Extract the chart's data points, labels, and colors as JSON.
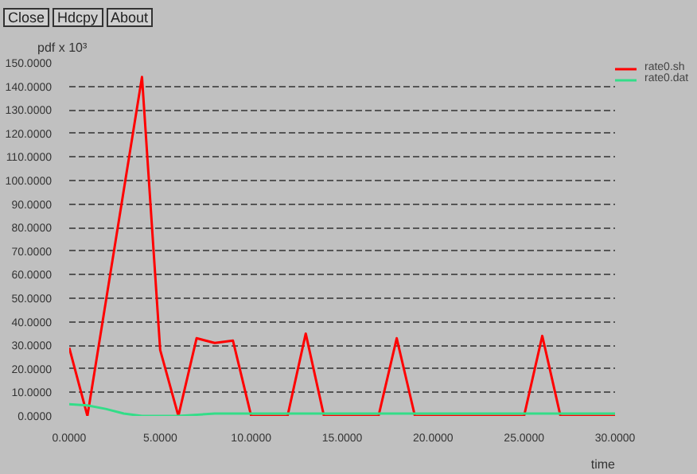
{
  "chart_data": {
    "type": "line",
    "ylabel": "pdf x 10³",
    "xlabel": "time",
    "annotations": [
      "Close",
      "Hdcpy",
      "About"
    ],
    "series": [
      {
        "name": "rate0.sh",
        "color": "#ff0000",
        "x": [
          0,
          1,
          4,
          5,
          6,
          7,
          8,
          9,
          10,
          12,
          13,
          14,
          17,
          18,
          19,
          25,
          26,
          27,
          30
        ],
        "values": [
          29,
          0,
          144,
          28,
          0,
          33,
          31,
          32,
          0,
          0,
          35,
          0,
          0,
          33,
          0,
          0,
          34,
          0,
          0
        ]
      },
      {
        "name": "rate0.dat",
        "color": "#33dd88",
        "x": [
          0,
          1,
          2,
          3,
          4,
          6,
          8,
          10,
          30
        ],
        "values": [
          5,
          4.5,
          3,
          1,
          0,
          0,
          1,
          1,
          1
        ]
      }
    ],
    "xlim": [
      0,
      30
    ],
    "ylim": [
      0,
      150
    ],
    "xticks": [
      {
        "value": 0,
        "label": "0.0000"
      },
      {
        "value": 5,
        "label": "5.0000"
      },
      {
        "value": 10,
        "label": "10.0000"
      },
      {
        "value": 15,
        "label": "15.0000"
      },
      {
        "value": 20,
        "label": "20.0000"
      },
      {
        "value": 25,
        "label": "25.0000"
      },
      {
        "value": 30,
        "label": "30.0000"
      }
    ],
    "yticks": [
      {
        "value": 0,
        "label": "0.0000"
      },
      {
        "value": 10,
        "label": "10.0000"
      },
      {
        "value": 20,
        "label": "20.0000"
      },
      {
        "value": 30,
        "label": "30.0000"
      },
      {
        "value": 40,
        "label": "40.0000"
      },
      {
        "value": 50,
        "label": "50.0000"
      },
      {
        "value": 60,
        "label": "60.0000"
      },
      {
        "value": 70,
        "label": "70.0000"
      },
      {
        "value": 80,
        "label": "80.0000"
      },
      {
        "value": 90,
        "label": "90.0000"
      },
      {
        "value": 100,
        "label": "100.0000"
      },
      {
        "value": 110,
        "label": "110.0000"
      },
      {
        "value": 120,
        "label": "120.0000"
      },
      {
        "value": 130,
        "label": "130.0000"
      },
      {
        "value": 140,
        "label": "140.0000"
      },
      {
        "value": 150,
        "label": "150.0000"
      }
    ],
    "grid": "y",
    "legend": "top right",
    "marker": "none",
    "line_style": "solid"
  }
}
